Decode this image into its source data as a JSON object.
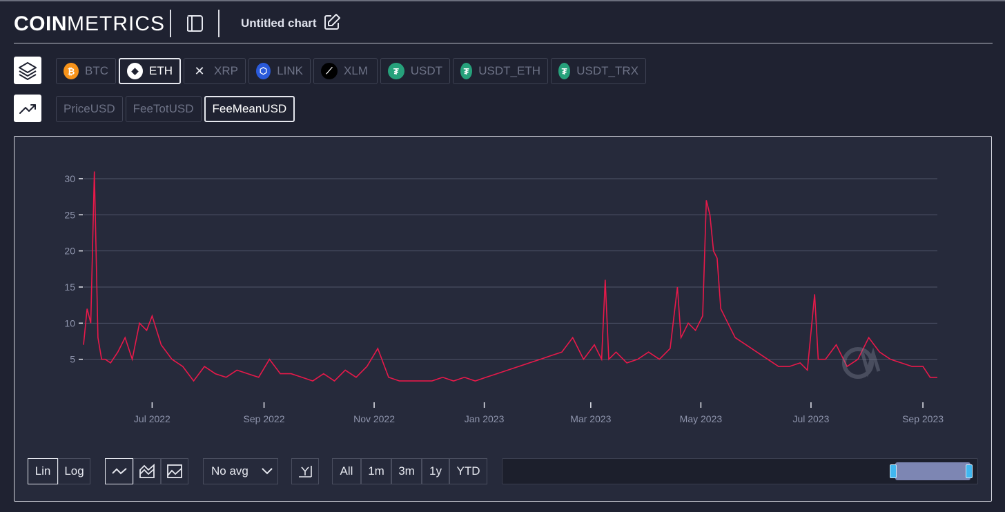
{
  "header": {
    "logo_bold": "COIN",
    "logo_light": "METRICS",
    "chart_title": "Untitled chart"
  },
  "assets": [
    {
      "label": "BTC",
      "icon": "bitcoin-icon",
      "color": "#f7931a",
      "glyph": "₿",
      "active": false
    },
    {
      "label": "ETH",
      "icon": "ethereum-icon",
      "color": "#ffffff",
      "glyph": "◆",
      "active": true
    },
    {
      "label": "XRP",
      "icon": "xrp-icon",
      "color": "#1f2231",
      "glyph": "✕",
      "active": false
    },
    {
      "label": "LINK",
      "icon": "chainlink-icon",
      "color": "#2a5ada",
      "glyph": "⬡",
      "active": false
    },
    {
      "label": "XLM",
      "icon": "stellar-icon",
      "color": "#000000",
      "glyph": "⟋",
      "active": false
    },
    {
      "label": "USDT",
      "icon": "tether-icon",
      "color": "#26a17b",
      "glyph": "₮",
      "active": false
    },
    {
      "label": "USDT_ETH",
      "icon": "tether-icon",
      "color": "#26a17b",
      "glyph": "₮",
      "active": false
    },
    {
      "label": "USDT_TRX",
      "icon": "tether-icon",
      "color": "#26a17b",
      "glyph": "₮",
      "active": false
    }
  ],
  "metrics": [
    {
      "label": "PriceUSD",
      "active": false
    },
    {
      "label": "FeeTotUSD",
      "active": false
    },
    {
      "label": "FeeMeanUSD",
      "active": true
    }
  ],
  "controls": {
    "scale": [
      "Lin",
      "Log"
    ],
    "avg_label": "No avg",
    "ranges": [
      "All",
      "1m",
      "3m",
      "1y",
      "YTD"
    ]
  },
  "colors": {
    "line": "#e8194a",
    "background": "#1f2231",
    "panel": "#262a3b"
  },
  "chart_data": {
    "type": "line",
    "title": "",
    "xlabel": "",
    "ylabel": "",
    "ylim": [
      0,
      32
    ],
    "y_ticks": [
      5,
      10,
      15,
      20,
      25,
      30
    ],
    "x_tick_labels": [
      "Jul 2022",
      "Sep 2022",
      "Nov 2022",
      "Jan 2023",
      "Mar 2023",
      "May 2023",
      "Jul 2023",
      "Sep 2023"
    ],
    "x_ticks": [
      "2022-07-01",
      "2022-09-01",
      "2022-11-01",
      "2023-01-01",
      "2023-03-01",
      "2023-05-01",
      "2023-07-01",
      "2023-09-01"
    ],
    "series": [
      {
        "x": [
          "2022-05-24",
          "2022-05-26",
          "2022-05-28",
          "2022-05-30",
          "2022-06-01",
          "2022-06-03",
          "2022-06-05",
          "2022-06-08",
          "2022-06-12",
          "2022-06-16",
          "2022-06-20",
          "2022-06-24",
          "2022-06-28",
          "2022-07-01",
          "2022-07-06",
          "2022-07-12",
          "2022-07-18",
          "2022-07-24",
          "2022-07-30",
          "2022-08-05",
          "2022-08-11",
          "2022-08-17",
          "2022-08-23",
          "2022-08-29",
          "2022-09-04",
          "2022-09-10",
          "2022-09-16",
          "2022-09-22",
          "2022-09-28",
          "2022-10-04",
          "2022-10-10",
          "2022-10-16",
          "2022-10-22",
          "2022-10-28",
          "2022-11-03",
          "2022-11-09",
          "2022-11-15",
          "2022-11-21",
          "2022-11-27",
          "2022-12-03",
          "2022-12-09",
          "2022-12-15",
          "2022-12-21",
          "2022-12-27",
          "2023-01-02",
          "2023-01-08",
          "2023-01-14",
          "2023-01-20",
          "2023-01-26",
          "2023-02-01",
          "2023-02-07",
          "2023-02-13",
          "2023-02-19",
          "2023-02-25",
          "2023-03-03",
          "2023-03-07",
          "2023-03-09",
          "2023-03-11",
          "2023-03-15",
          "2023-03-21",
          "2023-03-27",
          "2023-04-02",
          "2023-04-08",
          "2023-04-14",
          "2023-04-18",
          "2023-04-20",
          "2023-04-24",
          "2023-04-28",
          "2023-05-02",
          "2023-05-04",
          "2023-05-06",
          "2023-05-08",
          "2023-05-10",
          "2023-05-12",
          "2023-05-14",
          "2023-05-16",
          "2023-05-20",
          "2023-05-26",
          "2023-06-01",
          "2023-06-07",
          "2023-06-13",
          "2023-06-19",
          "2023-06-25",
          "2023-06-29",
          "2023-07-03",
          "2023-07-05",
          "2023-07-09",
          "2023-07-15",
          "2023-07-21",
          "2023-07-27",
          "2023-08-02",
          "2023-08-08",
          "2023-08-14",
          "2023-08-20",
          "2023-08-26",
          "2023-09-01",
          "2023-09-05",
          "2023-09-09"
        ],
        "values": [
          7,
          12,
          10,
          31,
          8,
          5,
          5,
          4.5,
          6,
          8,
          5,
          10,
          9,
          11,
          7,
          5,
          4,
          2,
          4,
          3,
          2.5,
          3.5,
          3,
          2.5,
          5,
          3,
          3,
          2.5,
          2,
          3,
          2,
          3.5,
          2.5,
          4,
          6.5,
          2.5,
          2,
          2,
          2,
          2,
          2.5,
          2,
          2.5,
          2,
          2.5,
          3,
          3.5,
          4,
          4.5,
          5,
          5.5,
          6,
          8,
          5,
          7,
          5,
          16,
          5,
          6,
          4.5,
          5,
          6,
          5,
          6.5,
          15,
          8,
          10,
          9,
          11,
          27,
          25,
          20,
          19,
          12,
          11,
          10,
          8,
          7,
          6,
          5,
          4,
          4,
          4.5,
          3.5,
          14,
          5,
          5,
          7,
          4,
          5,
          8,
          6,
          5,
          4.5,
          4,
          4,
          2.5,
          2.5
        ]
      }
    ]
  }
}
